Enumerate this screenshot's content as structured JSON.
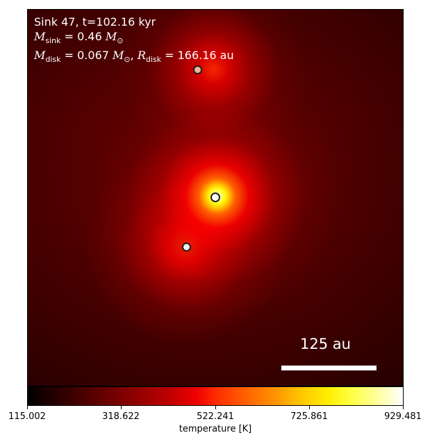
{
  "header": {
    "line1": "Sink 47, t=102.16 kyr",
    "msink_symbol": "M",
    "msink_sub": "sink",
    "msink_value": "= 0.46",
    "msink_unit": "M",
    "msink_unit_sub": "⊙",
    "mdisk_symbol": "M",
    "mdisk_sub": "disk",
    "mdisk_value": "= 0.067",
    "mdisk_unit": "M",
    "mdisk_unit_sub": "⊙",
    "sep": ",",
    "rdisk_symbol": "R",
    "rdisk_sub": "disk",
    "rdisk_value": "= 166.16",
    "rdisk_unit": "au"
  },
  "scalebar": {
    "label": "125 au"
  },
  "colorbar": {
    "colormap": "hot",
    "ticks": [
      "115.002",
      "318.622",
      "522.241",
      "725.861",
      "929.481"
    ],
    "label": "temperature [K]"
  },
  "sinks": [
    {
      "name": "upper",
      "fill": "#f0b39a"
    },
    {
      "name": "middle",
      "fill": "#ffffff"
    },
    {
      "name": "lower",
      "fill": "#f2f2f2"
    }
  ]
}
